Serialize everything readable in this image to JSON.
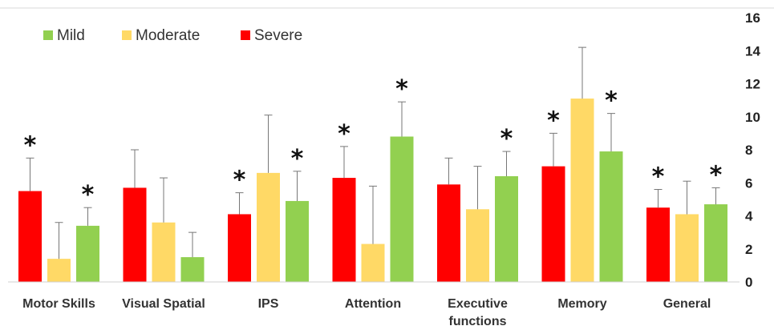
{
  "chart_data": {
    "type": "bar",
    "categories": [
      "Motor Skills",
      "Visual Spatial",
      "IPS",
      "Attention",
      "Executive functions",
      "Memory",
      "General"
    ],
    "category_lines": [
      [
        "Motor Skills"
      ],
      [
        "Visual Spatial"
      ],
      [
        "IPS"
      ],
      [
        "Attention"
      ],
      [
        "Executive",
        "functions"
      ],
      [
        "Memory"
      ],
      [
        "General"
      ]
    ],
    "series": [
      {
        "name": "Severe",
        "color": "#FF0000",
        "values": [
          5.5,
          5.7,
          4.1,
          6.3,
          5.9,
          7.0,
          4.5
        ],
        "error": [
          2.0,
          2.3,
          1.3,
          1.9,
          1.6,
          2.0,
          1.1
        ],
        "significant": [
          true,
          false,
          true,
          true,
          false,
          true,
          true
        ]
      },
      {
        "name": "Moderate",
        "color": "#FFD966",
        "values": [
          1.4,
          3.6,
          6.6,
          2.3,
          4.4,
          11.1,
          4.1
        ],
        "error": [
          2.2,
          2.7,
          3.5,
          3.5,
          2.6,
          3.1,
          2.0
        ],
        "significant": [
          false,
          false,
          false,
          false,
          false,
          false,
          false
        ]
      },
      {
        "name": "Mild",
        "color": "#92D050",
        "values": [
          3.4,
          1.5,
          4.9,
          8.8,
          6.4,
          7.9,
          4.7
        ],
        "error": [
          1.1,
          1.5,
          1.8,
          2.1,
          1.5,
          2.3,
          1.0
        ],
        "significant": [
          true,
          false,
          true,
          true,
          true,
          true,
          true
        ]
      }
    ],
    "legend": [
      "Mild",
      "Moderate",
      "Severe"
    ],
    "legend_colors": [
      "#92D050",
      "#FFD966",
      "#FF0000"
    ],
    "legend_position": "top-left",
    "significance_marker": "*",
    "y_ticks": [
      "0",
      "2",
      "4",
      "6",
      "8",
      "10",
      "12",
      "14",
      "16"
    ],
    "ylim": [
      0,
      16
    ],
    "y_axis_side": "right",
    "grid": false
  }
}
